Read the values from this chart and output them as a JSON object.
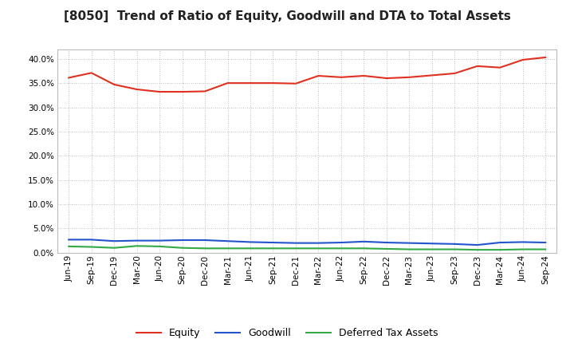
{
  "title": "[8050]  Trend of Ratio of Equity, Goodwill and DTA to Total Assets",
  "x_labels": [
    "Jun-19",
    "Sep-19",
    "Dec-19",
    "Mar-20",
    "Jun-20",
    "Sep-20",
    "Dec-20",
    "Mar-21",
    "Jun-21",
    "Sep-21",
    "Dec-21",
    "Mar-22",
    "Jun-22",
    "Sep-22",
    "Dec-22",
    "Mar-23",
    "Jun-23",
    "Sep-23",
    "Dec-23",
    "Mar-24",
    "Jun-24",
    "Sep-24"
  ],
  "equity": [
    0.361,
    0.371,
    0.347,
    0.337,
    0.332,
    0.332,
    0.333,
    0.35,
    0.35,
    0.35,
    0.349,
    0.365,
    0.362,
    0.365,
    0.36,
    0.362,
    0.366,
    0.37,
    0.385,
    0.382,
    0.398,
    0.403
  ],
  "goodwill": [
    0.027,
    0.027,
    0.024,
    0.025,
    0.025,
    0.026,
    0.026,
    0.024,
    0.022,
    0.021,
    0.02,
    0.02,
    0.021,
    0.023,
    0.021,
    0.02,
    0.019,
    0.018,
    0.016,
    0.021,
    0.022,
    0.021
  ],
  "dta": [
    0.013,
    0.012,
    0.01,
    0.014,
    0.013,
    0.01,
    0.009,
    0.009,
    0.009,
    0.009,
    0.009,
    0.009,
    0.009,
    0.009,
    0.008,
    0.007,
    0.007,
    0.007,
    0.006,
    0.006,
    0.007,
    0.007
  ],
  "equity_color": "#e03020",
  "goodwill_color": "#2255cc",
  "dta_color": "#33aa44",
  "bg_color": "#ffffff",
  "plot_bg_color": "#ffffff",
  "grid_color": "#aaaaaa",
  "ylim": [
    0.0,
    0.42
  ],
  "yticks": [
    0.0,
    0.05,
    0.1,
    0.15,
    0.2,
    0.25,
    0.3,
    0.35,
    0.4
  ],
  "legend_labels": [
    "Equity",
    "Goodwill",
    "Deferred Tax Assets"
  ],
  "title_fontsize": 11,
  "tick_fontsize": 7.5,
  "legend_fontsize": 9
}
